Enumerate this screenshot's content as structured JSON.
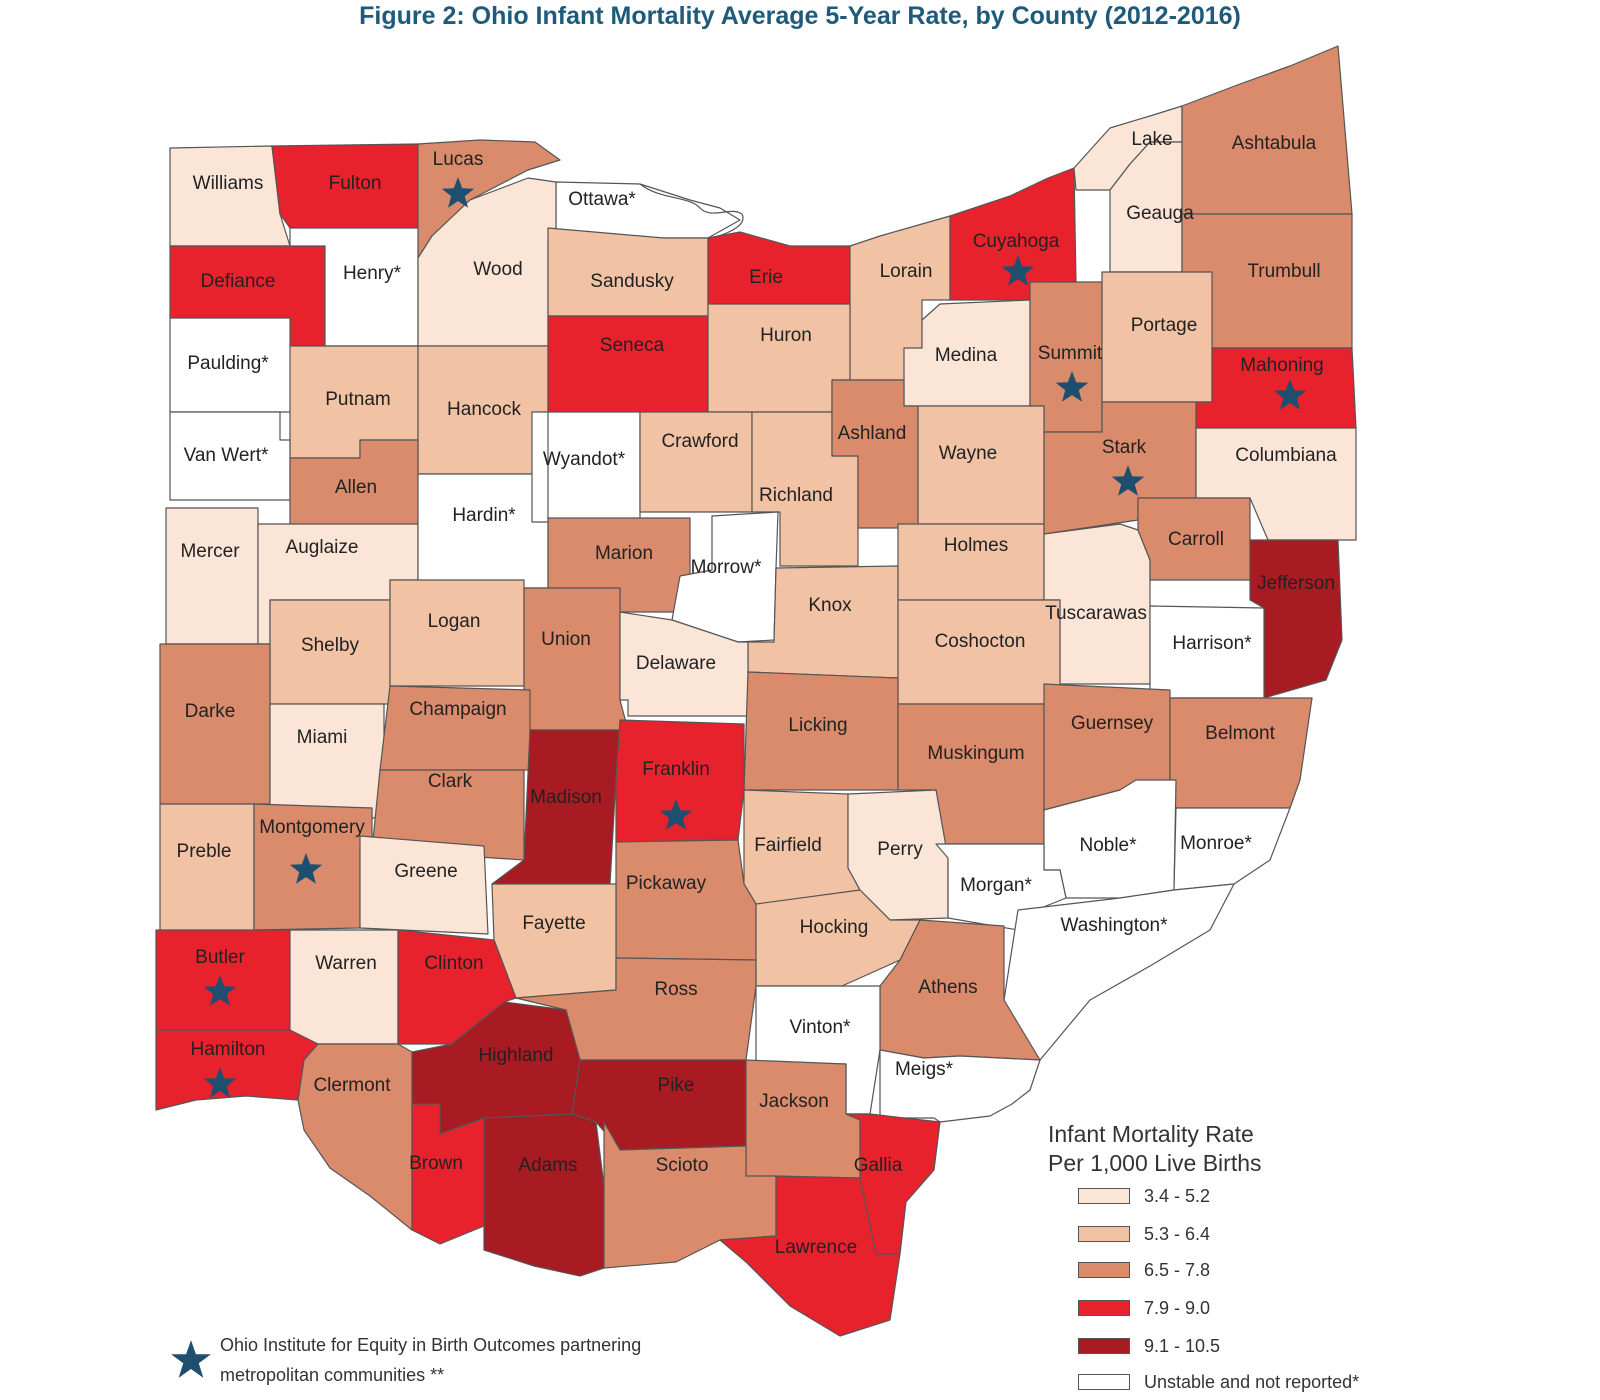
{
  "title": "Figure 2: Ohio Infant Mortality Average 5-Year Rate, by County (2012-2016)",
  "colors": {
    "c1": "#fbe5d6",
    "c2": "#f1c3a4",
    "c3": "#d98b6c",
    "c4": "#e8222c",
    "c5": "#a81b22",
    "c0": "#ffffff",
    "star": "#1f4f6e"
  },
  "legend": {
    "title_line1": "Infant Mortality Rate",
    "title_line2": "Per 1,000 Live Births",
    "items": [
      {
        "label": "3.4 - 5.2",
        "class": "c1"
      },
      {
        "label": "5.3 - 6.4",
        "class": "c2"
      },
      {
        "label": "6.5 - 7.8",
        "class": "c3"
      },
      {
        "label": "7.9 - 9.0",
        "class": "c4"
      },
      {
        "label": "9.1 - 10.5",
        "class": "c5"
      },
      {
        "label": "Unstable and not reported*",
        "class": "c0"
      }
    ]
  },
  "star_note": "Ohio Institute for Equity in Birth Outcomes partnering metropolitan communities **",
  "counties": [
    {
      "name": "Williams",
      "class": "c1",
      "star": false
    },
    {
      "name": "Fulton",
      "class": "c4",
      "star": false
    },
    {
      "name": "Lucas",
      "class": "c3",
      "star": true
    },
    {
      "name": "Ottawa*",
      "class": "c0",
      "star": false
    },
    {
      "name": "Defiance",
      "class": "c4",
      "star": false
    },
    {
      "name": "Henry*",
      "class": "c0",
      "star": false
    },
    {
      "name": "Wood",
      "class": "c1",
      "star": false
    },
    {
      "name": "Sandusky",
      "class": "c2",
      "star": false
    },
    {
      "name": "Erie",
      "class": "c4",
      "star": false
    },
    {
      "name": "Lorain",
      "class": "c2",
      "star": false
    },
    {
      "name": "Cuyahoga",
      "class": "c4",
      "star": true
    },
    {
      "name": "Lake",
      "class": "c1",
      "star": false
    },
    {
      "name": "Geauga",
      "class": "c1",
      "star": false
    },
    {
      "name": "Ashtabula",
      "class": "c3",
      "star": false
    },
    {
      "name": "Trumbull",
      "class": "c3",
      "star": false
    },
    {
      "name": "Paulding*",
      "class": "c0",
      "star": false
    },
    {
      "name": "Putnam",
      "class": "c2",
      "star": false
    },
    {
      "name": "Hancock",
      "class": "c2",
      "star": false
    },
    {
      "name": "Seneca",
      "class": "c4",
      "star": false
    },
    {
      "name": "Huron",
      "class": "c2",
      "star": false
    },
    {
      "name": "Medina",
      "class": "c1",
      "star": false
    },
    {
      "name": "Summit",
      "class": "c3",
      "star": true
    },
    {
      "name": "Portage",
      "class": "c2",
      "star": false
    },
    {
      "name": "Mahoning",
      "class": "c4",
      "star": true
    },
    {
      "name": "Van Wert*",
      "class": "c0",
      "star": false
    },
    {
      "name": "Allen",
      "class": "c3",
      "star": false
    },
    {
      "name": "Wyandot*",
      "class": "c0",
      "star": false
    },
    {
      "name": "Crawford",
      "class": "c2",
      "star": false
    },
    {
      "name": "Richland",
      "class": "c2",
      "star": false
    },
    {
      "name": "Ashland",
      "class": "c3",
      "star": false
    },
    {
      "name": "Wayne",
      "class": "c2",
      "star": false
    },
    {
      "name": "Stark",
      "class": "c3",
      "star": true
    },
    {
      "name": "Columbiana",
      "class": "c1",
      "star": false
    },
    {
      "name": "Mercer",
      "class": "c1",
      "star": false
    },
    {
      "name": "Auglaize",
      "class": "c1",
      "star": false
    },
    {
      "name": "Hardin*",
      "class": "c0",
      "star": false
    },
    {
      "name": "Marion",
      "class": "c3",
      "star": false
    },
    {
      "name": "Morrow*",
      "class": "c0",
      "star": false
    },
    {
      "name": "Knox",
      "class": "c2",
      "star": false
    },
    {
      "name": "Holmes",
      "class": "c2",
      "star": false
    },
    {
      "name": "Tuscarawas",
      "class": "c1",
      "star": false
    },
    {
      "name": "Carroll",
      "class": "c3",
      "star": false
    },
    {
      "name": "Jefferson",
      "class": "c5",
      "star": false
    },
    {
      "name": "Shelby",
      "class": "c2",
      "star": false
    },
    {
      "name": "Logan",
      "class": "c2",
      "star": false
    },
    {
      "name": "Union",
      "class": "c3",
      "star": false
    },
    {
      "name": "Delaware",
      "class": "c1",
      "star": false
    },
    {
      "name": "Coshocton",
      "class": "c2",
      "star": false
    },
    {
      "name": "Harrison*",
      "class": "c0",
      "star": false
    },
    {
      "name": "Darke",
      "class": "c3",
      "star": false
    },
    {
      "name": "Miami",
      "class": "c1",
      "star": false
    },
    {
      "name": "Champaign",
      "class": "c3",
      "star": false
    },
    {
      "name": "Licking",
      "class": "c3",
      "star": false
    },
    {
      "name": "Muskingum",
      "class": "c3",
      "star": false
    },
    {
      "name": "Guernsey",
      "class": "c3",
      "star": false
    },
    {
      "name": "Belmont",
      "class": "c3",
      "star": false
    },
    {
      "name": "Clark",
      "class": "c3",
      "star": false
    },
    {
      "name": "Madison",
      "class": "c5",
      "star": false
    },
    {
      "name": "Franklin",
      "class": "c4",
      "star": true
    },
    {
      "name": "Preble",
      "class": "c2",
      "star": false
    },
    {
      "name": "Montgomery",
      "class": "c3",
      "star": true
    },
    {
      "name": "Greene",
      "class": "c1",
      "star": false
    },
    {
      "name": "Fairfield",
      "class": "c2",
      "star": false
    },
    {
      "name": "Perry",
      "class": "c1",
      "star": false
    },
    {
      "name": "Noble*",
      "class": "c0",
      "star": false
    },
    {
      "name": "Monroe*",
      "class": "c0",
      "star": false
    },
    {
      "name": "Pickaway",
      "class": "c3",
      "star": false
    },
    {
      "name": "Fayette",
      "class": "c2",
      "star": false
    },
    {
      "name": "Morgan*",
      "class": "c0",
      "star": false
    },
    {
      "name": "Washington*",
      "class": "c0",
      "star": false
    },
    {
      "name": "Hocking",
      "class": "c2",
      "star": false
    },
    {
      "name": "Butler",
      "class": "c4",
      "star": true
    },
    {
      "name": "Warren",
      "class": "c1",
      "star": false
    },
    {
      "name": "Clinton",
      "class": "c4",
      "star": false
    },
    {
      "name": "Ross",
      "class": "c3",
      "star": false
    },
    {
      "name": "Athens",
      "class": "c3",
      "star": false
    },
    {
      "name": "Vinton*",
      "class": "c0",
      "star": false
    },
    {
      "name": "Hamilton",
      "class": "c4",
      "star": true
    },
    {
      "name": "Clermont",
      "class": "c3",
      "star": false
    },
    {
      "name": "Highland",
      "class": "c5",
      "star": false
    },
    {
      "name": "Pike",
      "class": "c5",
      "star": false
    },
    {
      "name": "Jackson",
      "class": "c3",
      "star": false
    },
    {
      "name": "Meigs*",
      "class": "c0",
      "star": false
    },
    {
      "name": "Brown",
      "class": "c4",
      "star": false
    },
    {
      "name": "Adams",
      "class": "c5",
      "star": false
    },
    {
      "name": "Scioto",
      "class": "c3",
      "star": false
    },
    {
      "name": "Gallia",
      "class": "c4",
      "star": false
    },
    {
      "name": "Lawrence",
      "class": "c4",
      "star": false
    }
  ]
}
